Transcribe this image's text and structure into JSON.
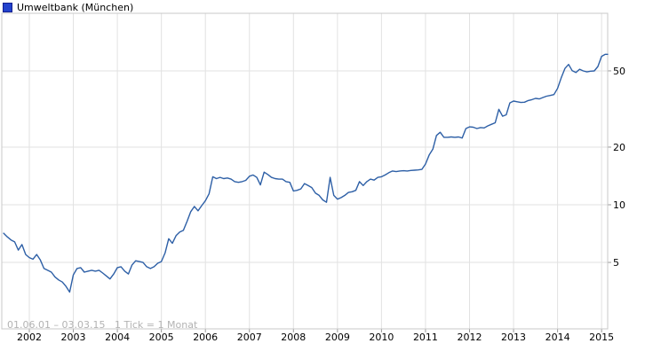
{
  "header": {
    "title": "Umweltbank (München)",
    "legend_color": "#2343cd"
  },
  "footer": {
    "range_info": "01.06.01 – 03.03.15   1 Tick = 1 Monat"
  },
  "chart_data": {
    "type": "line",
    "title": "Umweltbank (München)",
    "y_scale": "log",
    "grid": true,
    "y_axis_side": "right",
    "y_tick_values": [
      50,
      20,
      10,
      5
    ],
    "x_tick_labels": [
      "2002",
      "2003",
      "2004",
      "2005",
      "2006",
      "2007",
      "2008",
      "2009",
      "2010",
      "2011",
      "2012",
      "2013",
      "2014",
      "2015"
    ],
    "x_start": "2001-06",
    "x_end": "2015-03",
    "tick_note": "1 Tick = 1 Monat",
    "ylim": [
      2.25,
      100
    ],
    "line_color": "#2d5fa6",
    "grid_color": "#e2e2e2",
    "frame_color": "#c8c8c8",
    "series": [
      {
        "name": "Umweltbank (München)",
        "start_year": 2001,
        "start_month": 6,
        "interval": "month",
        "values": [
          7.1,
          6.8,
          6.55,
          6.4,
          5.8,
          6.2,
          5.5,
          5.3,
          5.2,
          5.5,
          5.15,
          4.65,
          4.55,
          4.45,
          4.2,
          4.05,
          3.95,
          3.75,
          3.5,
          4.3,
          4.65,
          4.7,
          4.45,
          4.5,
          4.55,
          4.5,
          4.55,
          4.4,
          4.25,
          4.1,
          4.35,
          4.7,
          4.75,
          4.5,
          4.35,
          4.85,
          5.1,
          5.05,
          5.0,
          4.75,
          4.65,
          4.75,
          4.95,
          5.05,
          5.6,
          6.65,
          6.3,
          6.9,
          7.2,
          7.35,
          8.2,
          9.2,
          9.8,
          9.3,
          9.9,
          10.5,
          11.4,
          14.0,
          13.7,
          13.9,
          13.7,
          13.8,
          13.6,
          13.2,
          13.1,
          13.2,
          13.4,
          14.1,
          14.3,
          13.9,
          12.7,
          14.8,
          14.4,
          13.9,
          13.7,
          13.6,
          13.6,
          13.2,
          13.1,
          11.8,
          11.9,
          12.1,
          12.9,
          12.6,
          12.3,
          11.5,
          11.2,
          10.6,
          10.3,
          13.9,
          11.2,
          10.7,
          10.9,
          11.2,
          11.6,
          11.7,
          11.9,
          13.2,
          12.6,
          13.2,
          13.6,
          13.45,
          13.9,
          14.0,
          14.3,
          14.7,
          15.0,
          14.9,
          15.0,
          15.05,
          15.0,
          15.1,
          15.15,
          15.2,
          15.3,
          16.3,
          18.2,
          19.5,
          23.0,
          23.9,
          22.5,
          22.5,
          22.6,
          22.5,
          22.6,
          22.3,
          25.0,
          25.5,
          25.4,
          25.0,
          25.3,
          25.2,
          25.8,
          26.3,
          26.8,
          31.5,
          29.0,
          29.5,
          34.0,
          34.8,
          34.5,
          34.2,
          34.3,
          35.0,
          35.4,
          35.9,
          35.7,
          36.3,
          36.9,
          37.2,
          37.6,
          40.5,
          46.0,
          51.5,
          54.0,
          50.1,
          49.0,
          51.0,
          50.0,
          49.4,
          49.8,
          50.0,
          52.7,
          59.5,
          61.0,
          61.0
        ]
      }
    ]
  }
}
